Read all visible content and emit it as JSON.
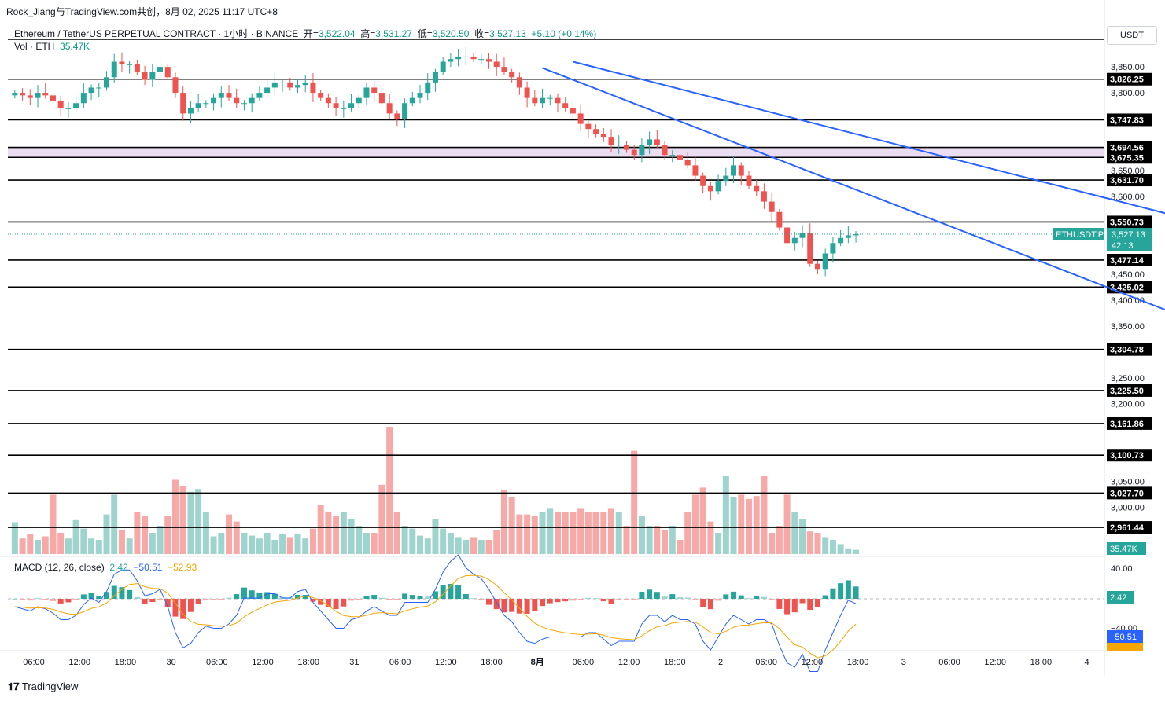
{
  "header": {
    "author_line": "Rock_Jiang与TradingView.com共创，8月 02, 2025 11:17 UTC+8",
    "symbol_title": "Ethereum / TetherUS PERPETUAL CONTRACT · 1小时 · BINANCE",
    "open_label": "开=",
    "open_value": "3,522.04",
    "high_label": "高=",
    "high_value": "3,531.27",
    "low_label": "低=",
    "low_value": "3,520.50",
    "close_label": "收=",
    "close_value": "3,527.13",
    "change": "+5.10 (+0.14%)",
    "vol_label": "Vol · ETH",
    "vol_value": "35.47K",
    "currency": "USDT"
  },
  "macd_legend": {
    "label": "MACD (12, 26, close)",
    "hist": "2.42",
    "macd": "−50.51",
    "signal": "−52.93"
  },
  "brand": "TradingView",
  "colors": {
    "up": "#26a69a",
    "down": "#ef5350",
    "vol_up": "#9fd3cd",
    "vol_down": "#f6a9a7",
    "channel": "#2962ff",
    "zone": "#e8d8f0",
    "macd": "#2962ff",
    "signal": "#f7a600"
  },
  "chart_data": {
    "type": "candlestick",
    "symbol": "ETHUSDT.P",
    "timeframe": "1小时",
    "x_ticks": [
      "06:00",
      "12:00",
      "18:00",
      "30",
      "06:00",
      "12:00",
      "18:00",
      "31",
      "06:00",
      "12:00",
      "18:00",
      "8月",
      "06:00",
      "12:00",
      "18:00",
      "2",
      "06:00",
      "12:00",
      "18:00",
      "3",
      "06:00",
      "12:00",
      "18:00",
      "4"
    ],
    "y_ticks": [
      "3,850.00",
      "3,800.00",
      "3,650.00",
      "3,600.00",
      "3,450.00",
      "3,400.00",
      "3,350.00",
      "3,250.00",
      "3,200.00",
      "3,050.00",
      "3,000.00"
    ],
    "ylim": [
      2910,
      3885
    ],
    "price_levels": [
      "3,826.25",
      "3,747.83",
      "3,694.56",
      "3,675.35",
      "3,631.70",
      "3,550.73",
      "3,477.14",
      "3,425.02",
      "3,304.78",
      "3,225.50",
      "3,161.86",
      "3,100.73",
      "3,027.70",
      "2,961.44"
    ],
    "highlight_zone": [
      3675.35,
      3694.56
    ],
    "last_price": {
      "label": "ETHUSDT.P",
      "value": "3,527.13",
      "countdown": "42:13"
    },
    "volume_last": "35.47K",
    "macd_axis": [
      "40.00",
      "−40.00"
    ],
    "macd_values": {
      "hist": "2.42",
      "macd": "−50.51",
      "signal": "−52.93"
    },
    "channel_upper": [
      [
        73,
        3860
      ],
      [
        201,
        3377
      ]
    ],
    "channel_lower": [
      [
        69,
        3848
      ],
      [
        195,
        3126
      ]
    ],
    "closes": [
      3800,
      3795,
      3790,
      3800,
      3795,
      3785,
      3770,
      3770,
      3780,
      3800,
      3810,
      3810,
      3830,
      3860,
      3855,
      3855,
      3840,
      3825,
      3840,
      3850,
      3830,
      3800,
      3760,
      3770,
      3780,
      3780,
      3790,
      3800,
      3790,
      3780,
      3780,
      3790,
      3800,
      3810,
      3820,
      3820,
      3810,
      3815,
      3820,
      3800,
      3790,
      3780,
      3770,
      3770,
      3780,
      3790,
      3810,
      3800,
      3780,
      3760,
      3750,
      3780,
      3790,
      3800,
      3820,
      3840,
      3860,
      3865,
      3870,
      3870,
      3865,
      3865,
      3860,
      3850,
      3840,
      3830,
      3810,
      3790,
      3780,
      3790,
      3790,
      3780,
      3770,
      3760,
      3740,
      3730,
      3720,
      3715,
      3700,
      3700,
      3690,
      3680,
      3700,
      3710,
      3700,
      3680,
      3680,
      3670,
      3660,
      3640,
      3620,
      3610,
      3630,
      3640,
      3660,
      3640,
      3620,
      3610,
      3590,
      3570,
      3540,
      3510,
      3520,
      3530,
      3470,
      3460,
      3490,
      3510,
      3520,
      3525,
      3527
    ]
  }
}
